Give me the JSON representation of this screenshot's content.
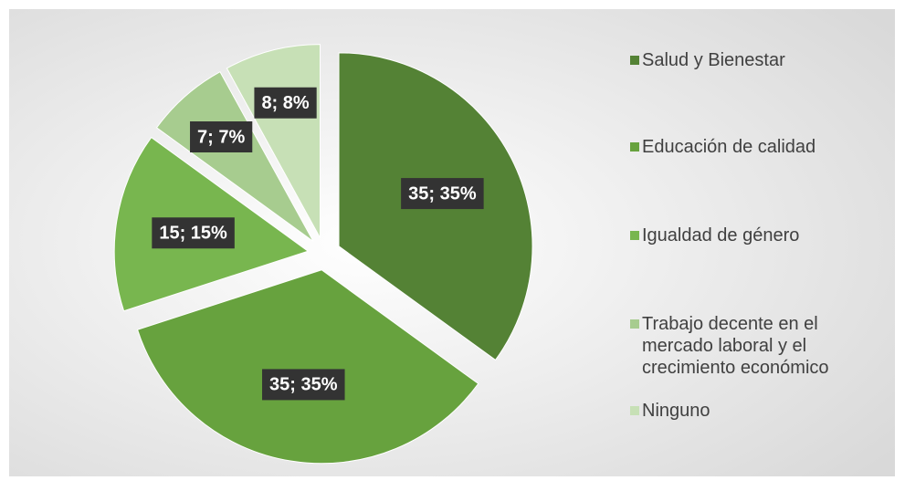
{
  "chart_data": {
    "type": "pie",
    "categories": [
      "Salud y Bienestar",
      "Educación de calidad",
      "Igualdad de género",
      "Trabajo decente en el mercado laboral y el crecimiento económico",
      "Ninguno"
    ],
    "values": [
      35,
      35,
      15,
      7,
      8
    ],
    "value_labels": [
      "35; 35%",
      "35; 35%",
      "15; 15%",
      "7; 7%",
      "8; 8%"
    ],
    "colors": [
      "#548235",
      "#67a23e",
      "#78b64f",
      "#a7cc8f",
      "#c7e0b6"
    ],
    "legend": "right"
  }
}
